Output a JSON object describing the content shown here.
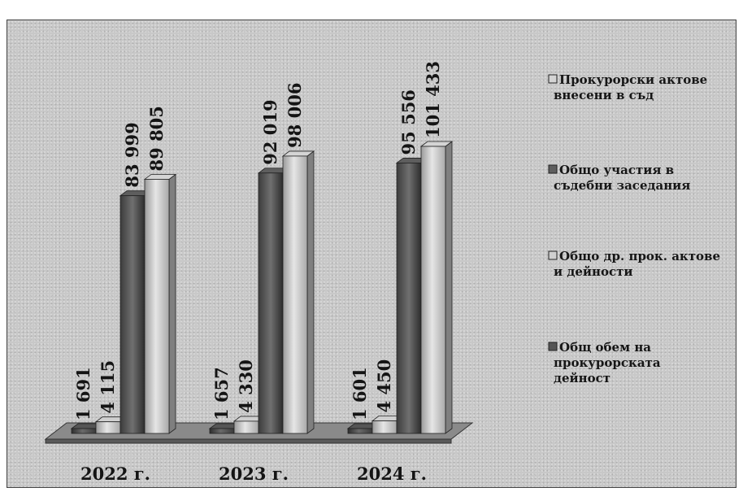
{
  "chart_data": {
    "type": "bar",
    "categories": [
      "2022 г.",
      "2023 г.",
      "2024 г."
    ],
    "series": [
      {
        "name": "Общ обем на прокурорската дейност",
        "legend_lines": [
          "Общ обем на",
          "прокурорската",
          "дейност"
        ],
        "values": [
          1691,
          1657,
          1601
        ],
        "labels": [
          "1 691",
          "1 657",
          "1 601"
        ],
        "color": "#555555"
      },
      {
        "name": "Общо др. прок. актове и дейности",
        "legend_lines": [
          "Общо др. прок. актове",
          "и дейности"
        ],
        "values": [
          4115,
          4330,
          4450
        ],
        "labels": [
          "4 115",
          "4 330",
          "4 450"
        ],
        "color": "#cfcfcf"
      },
      {
        "name": "Общо участия в съдебни заседания",
        "legend_lines": [
          "Общо участия в",
          "съдебни заседания"
        ],
        "values": [
          83999,
          92019,
          95556
        ],
        "labels": [
          "83 999",
          "92 019",
          "95 556"
        ],
        "color": "#5e5e5e"
      },
      {
        "name": "Прокурорски актове внесени в съд",
        "legend_lines": [
          "Прокурорски актове",
          "внесени в съд"
        ],
        "values": [
          89805,
          98006,
          101433
        ],
        "labels": [
          "89 805",
          "98 006",
          "101 433"
        ],
        "color": "#d4d4d4"
      }
    ],
    "legend_order": [
      3,
      2,
      1,
      0
    ],
    "ylim": [
      0,
      110000
    ],
    "legend_position": "right",
    "grid": false,
    "three_d": true
  }
}
